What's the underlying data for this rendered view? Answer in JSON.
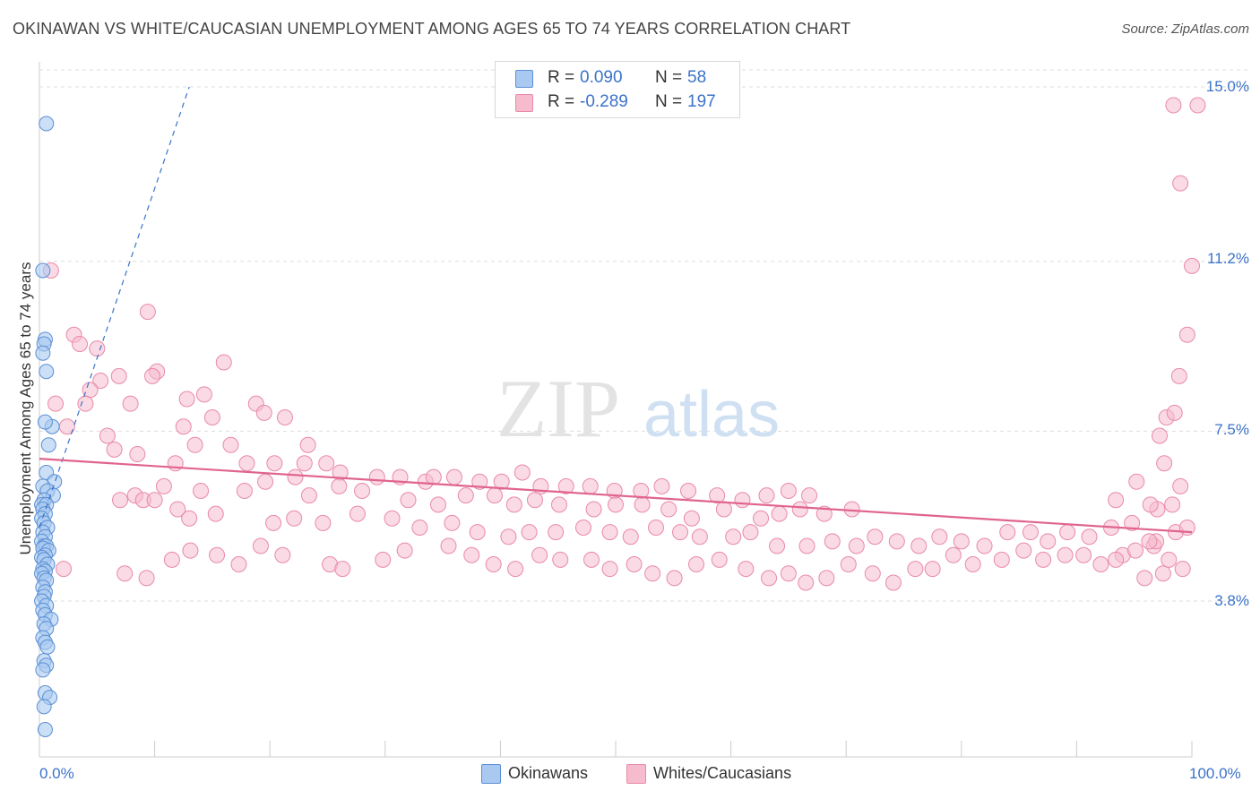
{
  "title": "OKINAWAN VS WHITE/CAUCASIAN UNEMPLOYMENT AMONG AGES 65 TO 74 YEARS CORRELATION CHART",
  "source": "Source: ZipAtlas.com",
  "watermark": {
    "zip": "ZIP",
    "atlas": "atlas"
  },
  "colors": {
    "blue_fill": "#a9c9f0",
    "blue_stroke": "#5b8fd6",
    "blue_line": "#3b73c9",
    "pink_fill": "#f6bccd",
    "pink_stroke": "#e98aa8",
    "pink_line": "#e0648e",
    "axis_text": "#3b73c9",
    "grid": "#dddddd"
  },
  "legend_top": [
    {
      "series": "Okinawans",
      "r_label": "R =",
      "r_value": "0.090",
      "n_label": "N =",
      "n_value": "58"
    },
    {
      "series": "Whites/Caucasians",
      "r_label": "R =",
      "r_value": "-0.289",
      "n_label": "N =",
      "n_value": "197"
    }
  ],
  "legend_bottom": [
    "Okinawans",
    "Whites/Caucasians"
  ],
  "chart_data": {
    "type": "scatter",
    "title": "OKINAWAN VS WHITE/CAUCASIAN UNEMPLOYMENT AMONG AGES 65 TO 74 YEARS CORRELATION CHART",
    "xlabel": "",
    "ylabel": "Unemployment Among Ages 65 to 74 years",
    "xlim": [
      0,
      100
    ],
    "ylim": [
      0,
      15.5
    ],
    "x_tick_labels": [
      "0.0%",
      "100.0%"
    ],
    "y_ticks": [
      3.8,
      7.5,
      11.2,
      15.0
    ],
    "y_tick_labels": [
      "3.8%",
      "7.5%",
      "11.2%",
      "15.0%"
    ],
    "grid": true,
    "series": [
      {
        "name": "Okinawans",
        "R": 0.09,
        "N": 58,
        "trend": {
          "x": [
            0.0,
            13.0
          ],
          "y": [
            5.4,
            15.0
          ],
          "style": "dashed"
        },
        "points": [
          [
            0.6,
            14.2
          ],
          [
            0.3,
            11.0
          ],
          [
            0.5,
            9.5
          ],
          [
            0.4,
            9.4
          ],
          [
            0.3,
            9.2
          ],
          [
            0.6,
            8.8
          ],
          [
            1.1,
            7.6
          ],
          [
            0.5,
            7.7
          ],
          [
            0.8,
            7.2
          ],
          [
            0.6,
            6.6
          ],
          [
            1.3,
            6.4
          ],
          [
            0.3,
            6.3
          ],
          [
            0.7,
            6.2
          ],
          [
            1.2,
            6.1
          ],
          [
            0.4,
            6.0
          ],
          [
            0.2,
            5.9
          ],
          [
            0.6,
            5.9
          ],
          [
            0.3,
            5.8
          ],
          [
            0.5,
            5.7
          ],
          [
            0.2,
            5.6
          ],
          [
            0.4,
            5.5
          ],
          [
            0.7,
            5.4
          ],
          [
            0.3,
            5.3
          ],
          [
            0.5,
            5.2
          ],
          [
            0.2,
            5.1
          ],
          [
            0.4,
            5.0
          ],
          [
            0.6,
            5.0
          ],
          [
            0.3,
            4.95
          ],
          [
            0.8,
            4.9
          ],
          [
            0.5,
            4.8
          ],
          [
            0.2,
            4.75
          ],
          [
            0.4,
            4.7
          ],
          [
            0.7,
            4.6
          ],
          [
            0.3,
            4.5
          ],
          [
            0.5,
            4.45
          ],
          [
            0.2,
            4.4
          ],
          [
            0.4,
            4.3
          ],
          [
            0.6,
            4.25
          ],
          [
            0.3,
            4.1
          ],
          [
            0.5,
            4.0
          ],
          [
            0.4,
            3.9
          ],
          [
            0.2,
            3.8
          ],
          [
            0.6,
            3.7
          ],
          [
            0.3,
            3.6
          ],
          [
            0.5,
            3.5
          ],
          [
            1.0,
            3.4
          ],
          [
            0.4,
            3.3
          ],
          [
            0.6,
            3.2
          ],
          [
            0.3,
            3.0
          ],
          [
            0.5,
            2.9
          ],
          [
            0.7,
            2.8
          ],
          [
            0.4,
            2.5
          ],
          [
            0.6,
            2.4
          ],
          [
            0.3,
            2.3
          ],
          [
            0.5,
            1.8
          ],
          [
            0.9,
            1.7
          ],
          [
            0.4,
            1.5
          ],
          [
            0.5,
            1.0
          ]
        ]
      },
      {
        "name": "Whites/Caucasians",
        "R": -0.289,
        "N": 197,
        "trend": {
          "x": [
            0.0,
            100.0
          ],
          "y": [
            6.9,
            5.3
          ],
          "style": "solid"
        },
        "points": [
          [
            1.0,
            11.0
          ],
          [
            9.4,
            10.1
          ],
          [
            3.0,
            9.6
          ],
          [
            3.5,
            9.4
          ],
          [
            5.0,
            9.3
          ],
          [
            16.0,
            9.0
          ],
          [
            10.2,
            8.8
          ],
          [
            9.8,
            8.7
          ],
          [
            6.9,
            8.7
          ],
          [
            5.3,
            8.6
          ],
          [
            4.4,
            8.4
          ],
          [
            4.0,
            8.1
          ],
          [
            1.4,
            8.1
          ],
          [
            7.9,
            8.1
          ],
          [
            12.8,
            8.2
          ],
          [
            14.3,
            8.3
          ],
          [
            18.8,
            8.1
          ],
          [
            19.5,
            7.9
          ],
          [
            21.3,
            7.8
          ],
          [
            15.0,
            7.8
          ],
          [
            12.5,
            7.6
          ],
          [
            2.4,
            7.6
          ],
          [
            5.9,
            7.4
          ],
          [
            6.5,
            7.1
          ],
          [
            16.6,
            7.2
          ],
          [
            23.3,
            7.2
          ],
          [
            13.5,
            7.2
          ],
          [
            8.5,
            7.0
          ],
          [
            11.8,
            6.8
          ],
          [
            18.0,
            6.8
          ],
          [
            20.4,
            6.8
          ],
          [
            23.0,
            6.8
          ],
          [
            24.9,
            6.8
          ],
          [
            26.1,
            6.6
          ],
          [
            29.3,
            6.5
          ],
          [
            22.2,
            6.5
          ],
          [
            31.3,
            6.5
          ],
          [
            33.5,
            6.4
          ],
          [
            34.2,
            6.5
          ],
          [
            36.0,
            6.5
          ],
          [
            38.2,
            6.4
          ],
          [
            40.1,
            6.4
          ],
          [
            41.9,
            6.6
          ],
          [
            43.5,
            6.3
          ],
          [
            45.7,
            6.3
          ],
          [
            47.8,
            6.3
          ],
          [
            49.9,
            6.2
          ],
          [
            52.2,
            6.2
          ],
          [
            54.0,
            6.3
          ],
          [
            56.3,
            6.2
          ],
          [
            58.8,
            6.1
          ],
          [
            61.0,
            6.0
          ],
          [
            63.1,
            6.1
          ],
          [
            65.0,
            6.2
          ],
          [
            66.8,
            6.1
          ],
          [
            17.8,
            6.2
          ],
          [
            19.6,
            6.4
          ],
          [
            23.4,
            6.1
          ],
          [
            26.0,
            6.3
          ],
          [
            28.0,
            6.2
          ],
          [
            32.0,
            6.0
          ],
          [
            34.6,
            5.9
          ],
          [
            37.0,
            6.1
          ],
          [
            39.5,
            6.1
          ],
          [
            41.2,
            5.9
          ],
          [
            43.0,
            6.0
          ],
          [
            45.1,
            5.9
          ],
          [
            48.1,
            5.8
          ],
          [
            50.0,
            5.9
          ],
          [
            52.3,
            5.9
          ],
          [
            54.6,
            5.8
          ],
          [
            56.6,
            5.6
          ],
          [
            59.4,
            5.8
          ],
          [
            62.6,
            5.6
          ],
          [
            64.2,
            5.7
          ],
          [
            66.0,
            5.8
          ],
          [
            68.1,
            5.7
          ],
          [
            70.5,
            5.8
          ],
          [
            8.3,
            6.1
          ],
          [
            10.8,
            6.3
          ],
          [
            14.0,
            6.2
          ],
          [
            9.0,
            6.0
          ],
          [
            7.0,
            6.0
          ],
          [
            10.0,
            6.0
          ],
          [
            12.0,
            5.8
          ],
          [
            13.0,
            5.6
          ],
          [
            15.3,
            5.7
          ],
          [
            20.3,
            5.5
          ],
          [
            22.1,
            5.6
          ],
          [
            24.6,
            5.5
          ],
          [
            27.6,
            5.7
          ],
          [
            30.6,
            5.6
          ],
          [
            33.0,
            5.4
          ],
          [
            35.8,
            5.5
          ],
          [
            38.0,
            5.3
          ],
          [
            40.7,
            5.2
          ],
          [
            42.5,
            5.3
          ],
          [
            44.8,
            5.3
          ],
          [
            47.2,
            5.4
          ],
          [
            49.5,
            5.3
          ],
          [
            51.3,
            5.2
          ],
          [
            53.5,
            5.4
          ],
          [
            55.6,
            5.3
          ],
          [
            57.3,
            5.2
          ],
          [
            60.2,
            5.2
          ],
          [
            61.7,
            5.3
          ],
          [
            64.0,
            5.0
          ],
          [
            66.6,
            5.0
          ],
          [
            68.8,
            5.1
          ],
          [
            70.9,
            5.0
          ],
          [
            72.5,
            5.2
          ],
          [
            74.4,
            5.1
          ],
          [
            76.3,
            5.0
          ],
          [
            78.1,
            5.2
          ],
          [
            80.0,
            5.1
          ],
          [
            82.0,
            5.0
          ],
          [
            84.0,
            5.3
          ],
          [
            86.0,
            5.3
          ],
          [
            87.5,
            5.1
          ],
          [
            89.2,
            5.3
          ],
          [
            91.1,
            5.2
          ],
          [
            93.0,
            5.4
          ],
          [
            2.1,
            4.5
          ],
          [
            7.4,
            4.4
          ],
          [
            9.3,
            4.3
          ],
          [
            11.5,
            4.7
          ],
          [
            13.1,
            4.9
          ],
          [
            15.4,
            4.8
          ],
          [
            17.3,
            4.6
          ],
          [
            19.2,
            5.0
          ],
          [
            21.1,
            4.8
          ],
          [
            25.2,
            4.6
          ],
          [
            26.3,
            4.5
          ],
          [
            29.8,
            4.7
          ],
          [
            31.7,
            4.9
          ],
          [
            35.5,
            5.0
          ],
          [
            37.5,
            4.8
          ],
          [
            39.4,
            4.6
          ],
          [
            41.3,
            4.5
          ],
          [
            43.4,
            4.8
          ],
          [
            45.2,
            4.7
          ],
          [
            47.9,
            4.7
          ],
          [
            49.5,
            4.5
          ],
          [
            51.6,
            4.6
          ],
          [
            53.2,
            4.4
          ],
          [
            55.1,
            4.3
          ],
          [
            57.0,
            4.6
          ],
          [
            59.0,
            4.7
          ],
          [
            61.3,
            4.5
          ],
          [
            63.3,
            4.3
          ],
          [
            65.0,
            4.4
          ],
          [
            66.5,
            4.2
          ],
          [
            68.3,
            4.3
          ],
          [
            70.2,
            4.6
          ],
          [
            72.3,
            4.4
          ],
          [
            74.1,
            4.2
          ],
          [
            76.0,
            4.5
          ],
          [
            77.5,
            4.5
          ],
          [
            79.3,
            4.8
          ],
          [
            81.0,
            4.6
          ],
          [
            83.5,
            4.7
          ],
          [
            85.4,
            4.9
          ],
          [
            87.1,
            4.7
          ],
          [
            89.0,
            4.8
          ],
          [
            90.6,
            4.8
          ],
          [
            92.1,
            4.6
          ],
          [
            94.0,
            4.8
          ],
          [
            95.9,
            4.3
          ],
          [
            97.5,
            4.4
          ],
          [
            99.2,
            4.5
          ],
          [
            93.4,
            4.7
          ],
          [
            95.1,
            4.9
          ],
          [
            96.7,
            5.0
          ],
          [
            98.0,
            4.7
          ],
          [
            96.9,
            5.1
          ],
          [
            98.6,
            5.3
          ],
          [
            99.6,
            5.4
          ],
          [
            96.3,
            5.1
          ],
          [
            94.8,
            5.5
          ],
          [
            93.4,
            6.0
          ],
          [
            95.2,
            6.4
          ],
          [
            97.6,
            6.8
          ],
          [
            99.0,
            6.3
          ],
          [
            98.3,
            5.9
          ],
          [
            97.0,
            5.8
          ],
          [
            96.4,
            5.9
          ],
          [
            97.2,
            7.4
          ],
          [
            97.8,
            7.8
          ],
          [
            98.5,
            7.9
          ],
          [
            98.9,
            8.7
          ],
          [
            99.6,
            9.6
          ],
          [
            100.0,
            11.1
          ],
          [
            99.0,
            12.9
          ],
          [
            98.4,
            14.6
          ],
          [
            100.5,
            14.6
          ]
        ]
      }
    ]
  }
}
